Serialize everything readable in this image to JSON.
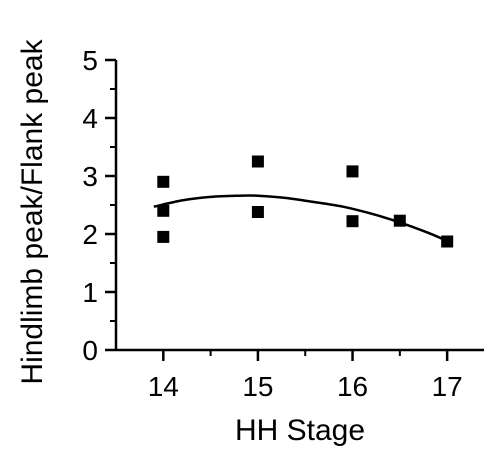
{
  "chart_data": {
    "type": "scatter",
    "title": "",
    "xlabel": "HH Stage",
    "ylabel": "Hindlimb peak/Flank peak",
    "xlim": [
      13.5,
      17.4
    ],
    "ylim": [
      0,
      5
    ],
    "xticks": [
      14,
      15,
      16,
      17
    ],
    "yticks": [
      0,
      1,
      2,
      3,
      4,
      5
    ],
    "grid": false,
    "legend": "none",
    "series": [
      {
        "kind": "points",
        "marker": "square",
        "color": "#000000",
        "x": [
          14,
          14,
          14,
          15,
          15,
          16,
          16,
          16.5,
          17
        ],
        "y": [
          2.9,
          2.4,
          1.95,
          3.25,
          2.38,
          3.08,
          2.22,
          2.23,
          1.87
        ]
      },
      {
        "kind": "fit",
        "style": "line",
        "color": "#000000",
        "x": [
          13.9,
          14.2,
          14.5,
          14.8,
          15.0,
          15.3,
          15.6,
          15.9,
          16.2,
          16.5,
          16.8,
          17.0
        ],
        "y": [
          2.47,
          2.58,
          2.64,
          2.66,
          2.66,
          2.62,
          2.55,
          2.47,
          2.35,
          2.2,
          2.02,
          1.88
        ]
      }
    ]
  }
}
